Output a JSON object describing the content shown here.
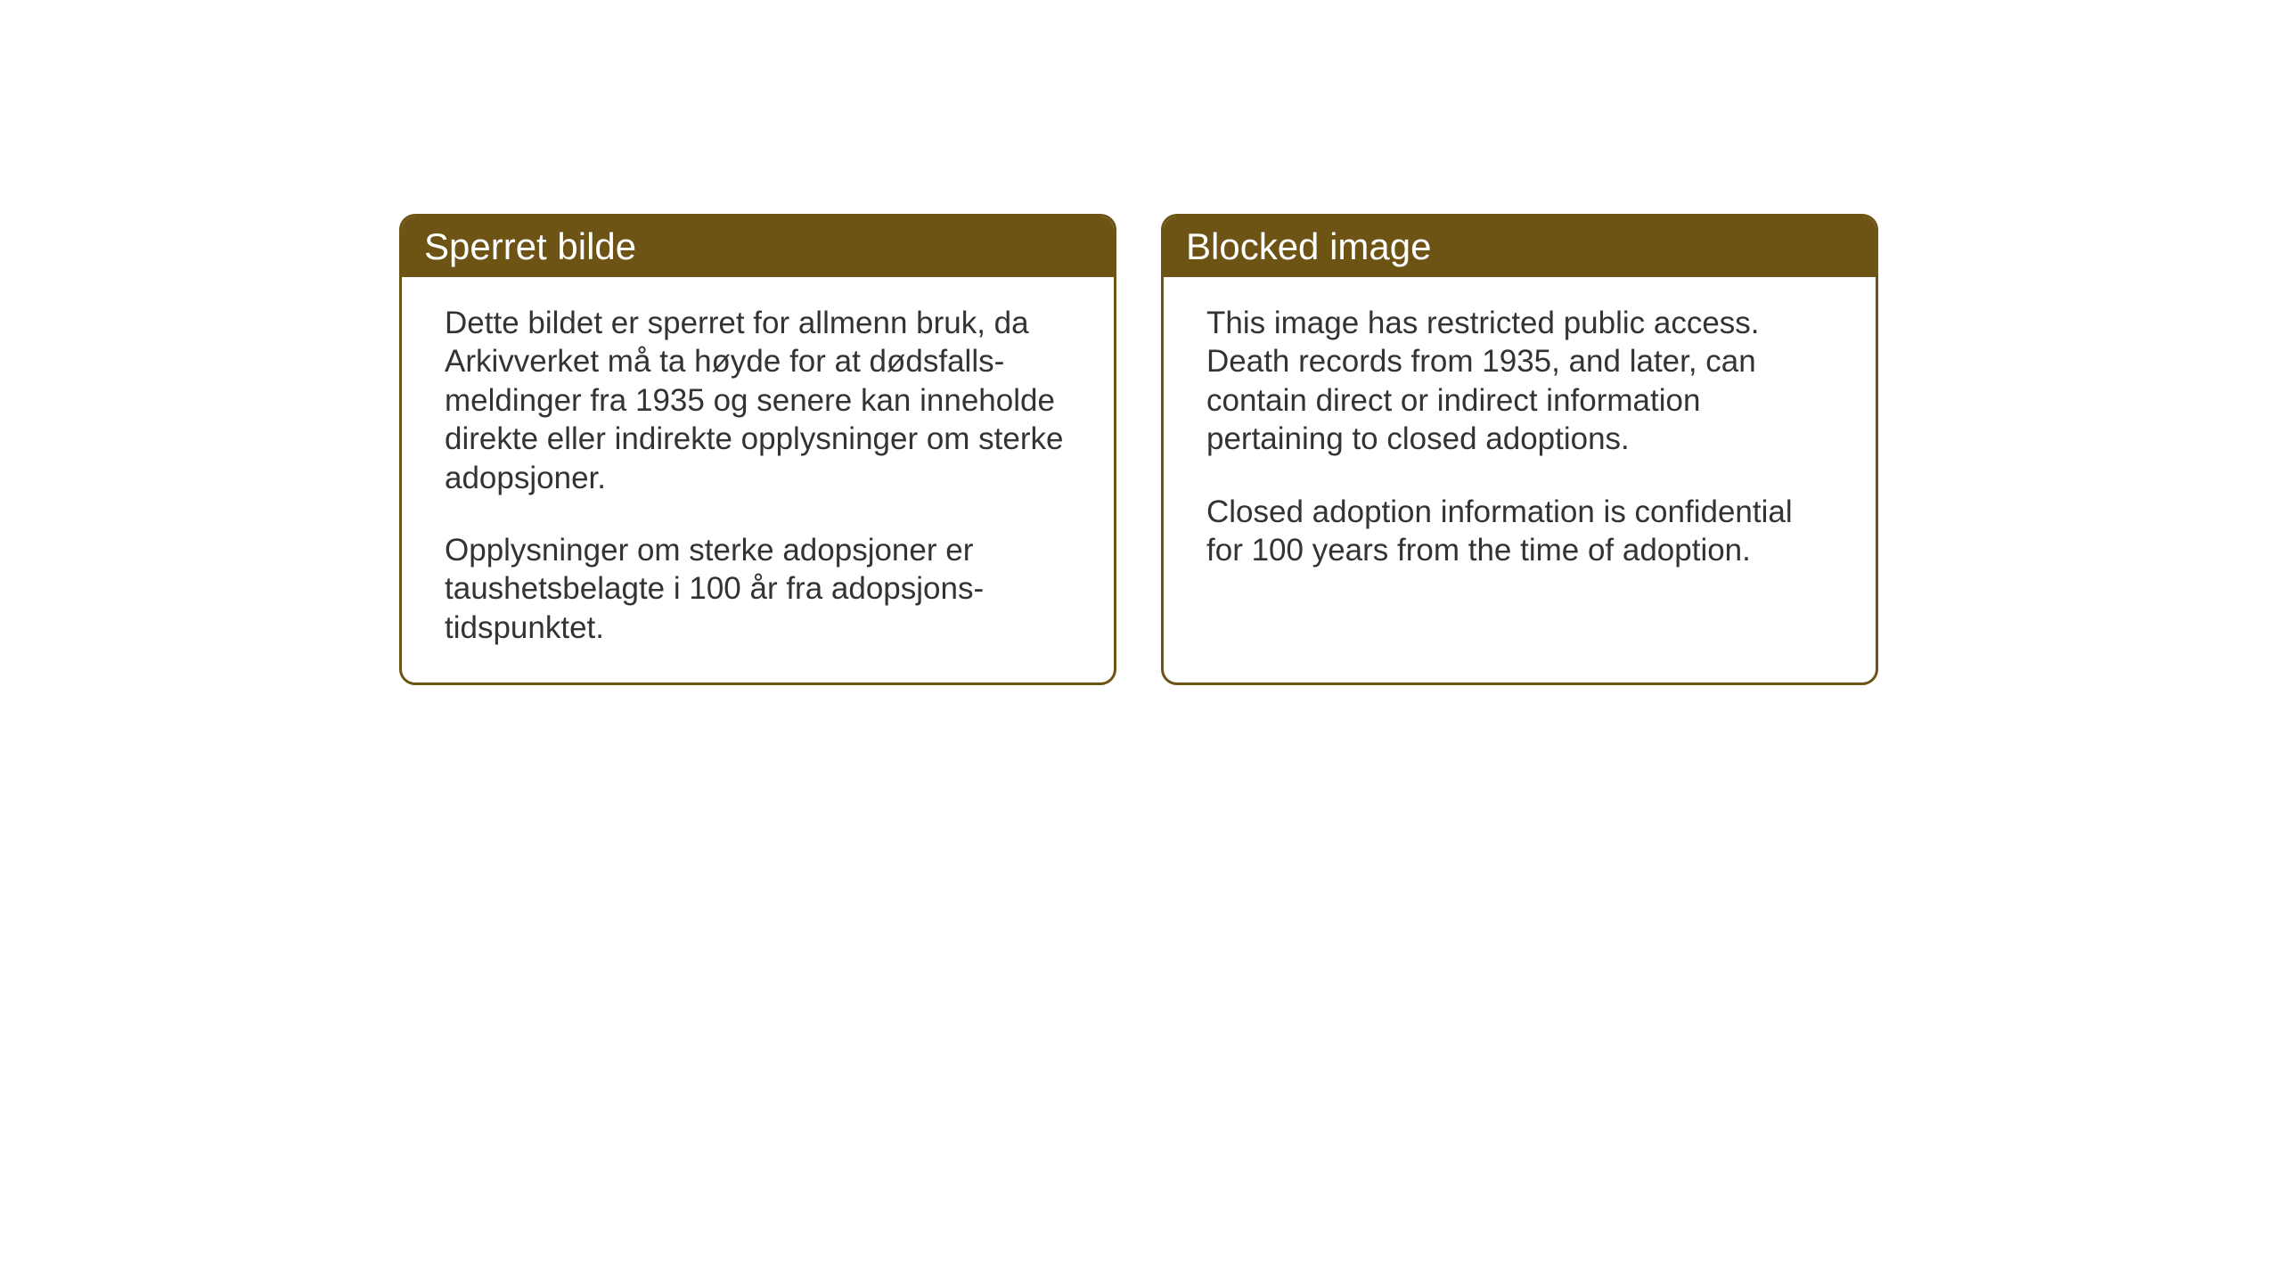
{
  "cards": [
    {
      "title": "Sperret bilde",
      "paragraph1": "Dette bildet er sperret for allmenn bruk, da Arkivverket må ta høyde for at dødsfalls-meldinger fra 1935 og senere kan inneholde direkte eller indirekte opplysninger om sterke adopsjoner.",
      "paragraph2": "Opplysninger om sterke adopsjoner er taushetsbelagte i 100 år fra adopsjons-tidspunktet."
    },
    {
      "title": "Blocked image",
      "paragraph1": "This image has restricted public access. Death records from 1935, and later, can contain direct or indirect information pertaining to closed adoptions.",
      "paragraph2": "Closed adoption information is confidential for 100 years from the time of adoption."
    }
  ],
  "styling": {
    "card_border_color": "#6d5314",
    "card_header_bg": "#6d5314",
    "card_header_text_color": "#ffffff",
    "card_body_bg": "#ffffff",
    "card_body_text_color": "#333333",
    "page_bg": "#ffffff",
    "title_fontsize": 42,
    "body_fontsize": 35,
    "border_radius": 18,
    "border_width": 3
  }
}
